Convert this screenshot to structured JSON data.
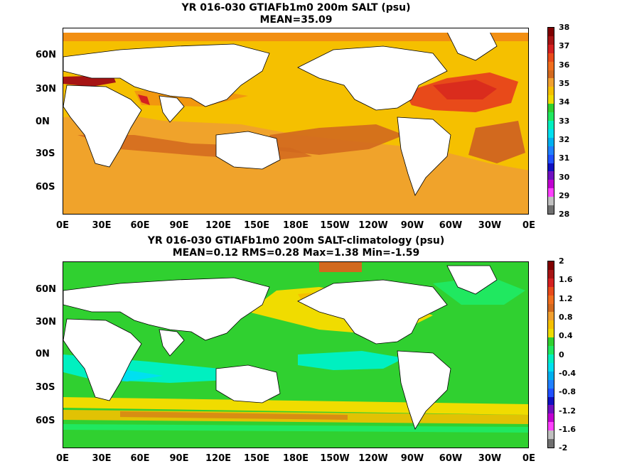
{
  "panels": [
    {
      "title": "YR 016-030 GTIAFb1m0 200m SALT (psu)",
      "subtitle": "MEAN=35.09"
    },
    {
      "title": "YR 016-030 GTIAFb1m0 200m SALT-climatology (psu)",
      "subtitle": "MEAN=0.12   RMS=0.28   Max=1.38   Min=-1.59"
    }
  ],
  "lat_labels": [
    "60N",
    "30N",
    "0N",
    "30S",
    "60S"
  ],
  "lon_labels": [
    "0E",
    "30E",
    "60E",
    "90E",
    "120E",
    "150E",
    "180E",
    "150W",
    "120W",
    "90W",
    "60W",
    "30W",
    "0E"
  ],
  "colorbar_top": {
    "labels": [
      "38",
      "37",
      "36",
      "35",
      "34",
      "33",
      "32",
      "31",
      "30",
      "29",
      "28"
    ],
    "colors": [
      "#7f0000",
      "#a61414",
      "#d42020",
      "#e84a1a",
      "#f06e1e",
      "#d2691e",
      "#f0a030",
      "#f5c000",
      "#f0dc00",
      "#30d030",
      "#20e860",
      "#00f0c0",
      "#00e0f0",
      "#00b0f0",
      "#2080ff",
      "#2050ff",
      "#1010c0",
      "#7010c0",
      "#c000d0",
      "#ff40ff",
      "#c0c0c0",
      "#707070"
    ]
  },
  "colorbar_bottom": {
    "labels": [
      "2",
      "1.6",
      "1.2",
      "0.8",
      "0.4",
      "0",
      "-0.4",
      "-0.8",
      "-1.2",
      "-1.6",
      "-2"
    ],
    "colors": [
      "#7f0000",
      "#a61414",
      "#d42020",
      "#e84a1a",
      "#f06e1e",
      "#d2691e",
      "#f0a030",
      "#f5c000",
      "#f0dc00",
      "#30d030",
      "#20e860",
      "#00f0c0",
      "#00e0f0",
      "#00b0f0",
      "#2080ff",
      "#2050ff",
      "#1010c0",
      "#7010c0",
      "#c000d0",
      "#ff40ff",
      "#c0c0c0",
      "#707070"
    ]
  },
  "colors": {
    "land": "#ffffff",
    "coast": "#000000"
  }
}
